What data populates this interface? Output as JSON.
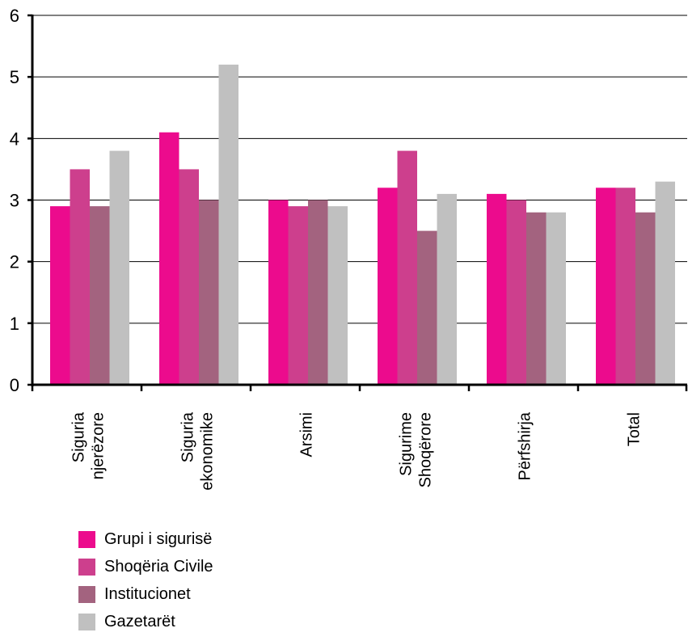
{
  "chart_data": {
    "type": "bar",
    "title": "",
    "xlabel": "",
    "ylabel": "",
    "ylim": [
      0,
      6
    ],
    "yticks": [
      0,
      1,
      2,
      3,
      4,
      5,
      6
    ],
    "grid": true,
    "legend_position": "bottom-left",
    "categories": [
      [
        "Siguria",
        "njerëzore"
      ],
      [
        "Siguria",
        "ekonomike"
      ],
      [
        "Arsimi"
      ],
      [
        "Sigurime",
        "Shoqërore"
      ],
      [
        "Përfshirja"
      ],
      [
        "Total"
      ]
    ],
    "series": [
      {
        "name": "Grupi i sigurisë",
        "color": "#EC0B8D",
        "values": [
          2.9,
          4.1,
          3.0,
          3.2,
          3.1,
          3.2
        ]
      },
      {
        "name": "Shoqëria Civile",
        "color": "#CD3F8D",
        "values": [
          3.5,
          3.5,
          2.9,
          3.8,
          3.0,
          3.2
        ]
      },
      {
        "name": "Institucionet",
        "color": "#A3637F",
        "values": [
          2.9,
          3.0,
          3.0,
          2.5,
          2.8,
          2.8
        ]
      },
      {
        "name": "Gazetarët",
        "color": "#C0C0C0",
        "values": [
          3.8,
          5.2,
          2.9,
          3.1,
          2.8,
          3.3
        ]
      }
    ]
  }
}
